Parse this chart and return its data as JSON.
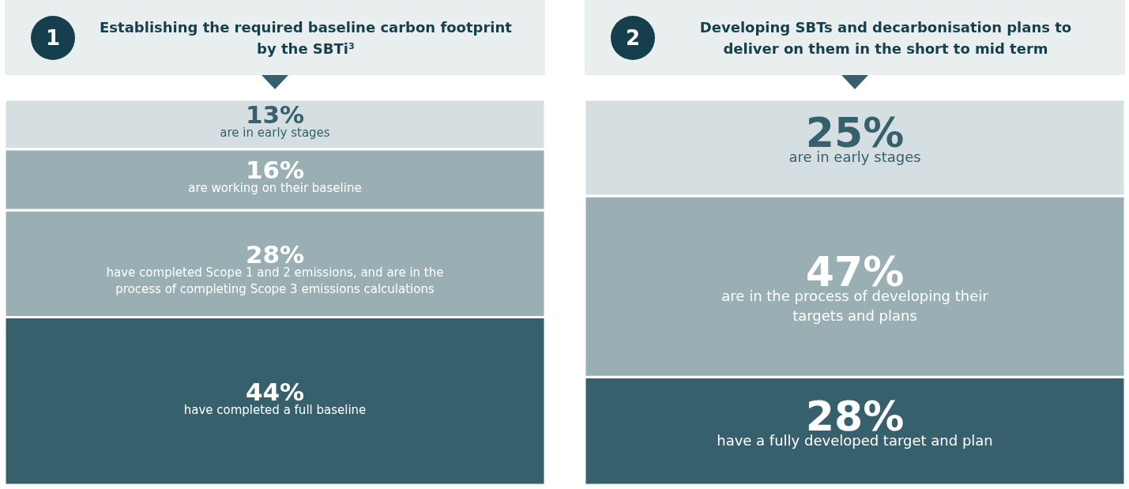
{
  "chart_data": [
    {
      "type": "bar",
      "title": "Establishing the required baseline carbon footprint by the SBTi³",
      "annotations": [
        "1"
      ],
      "stacked": true,
      "categories": [
        null
      ],
      "series": [
        {
          "name": "have completed a full baseline",
          "color": "#36606c",
          "values": [
            44
          ],
          "value_labels": [
            "44%"
          ]
        },
        {
          "name": "have completed Scope 1 and 2 emissions, and are in the process of completing Scope 3 emissions calculations",
          "color": "#9aafb3",
          "values": [
            28
          ],
          "value_labels": [
            "28%"
          ]
        },
        {
          "name": "are working on their baseline",
          "color": "#9aafb3",
          "values": [
            16
          ],
          "value_labels": [
            "16%"
          ]
        },
        {
          "name": "are in early stages",
          "color": "#d5dfe2",
          "values": [
            13
          ],
          "value_labels": [
            "13%"
          ]
        }
      ]
    },
    {
      "type": "bar",
      "title": "Developing SBTs and decarbonisation plans to deliver on them in the short to mid term",
      "annotations": [
        "2"
      ],
      "stacked": true,
      "categories": [
        null
      ],
      "series": [
        {
          "name": "have a fully developed target and plan",
          "color": "#36606c",
          "values": [
            28
          ],
          "value_labels": [
            "28%"
          ]
        },
        {
          "name": "are in the process of developing their targets and plans",
          "color": "#9aafb3",
          "values": [
            47
          ],
          "value_labels": [
            "47%"
          ]
        },
        {
          "name": "are in early stages",
          "color": "#d5dfe2",
          "values": [
            25
          ],
          "value_labels": [
            "25%"
          ]
        }
      ]
    }
  ]
}
